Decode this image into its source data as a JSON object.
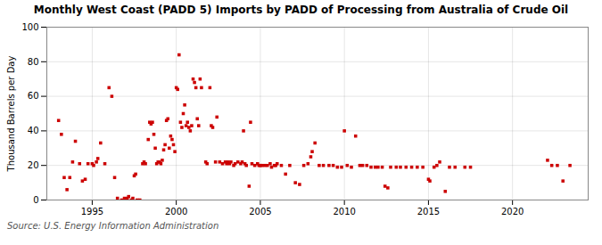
{
  "chart_data": {
    "type": "scatter",
    "title": "Monthly West Coast (PADD 5) Imports by PADD of Processing from Australia of Crude Oil",
    "ylabel": "Thousand Barrels per Day",
    "source": "Source: U.S. Energy Information Administration",
    "color": "#cc0000",
    "marker": "square",
    "grid": true,
    "xlim": [
      1992.3,
      2024.5
    ],
    "ylim": [
      0,
      100
    ],
    "xticks": [
      1995,
      2000,
      2005,
      2010,
      2015,
      2020
    ],
    "yticks": [
      0,
      20,
      40,
      60,
      80,
      100
    ],
    "x": [
      1993,
      1993.1666666667,
      1993.3333333333,
      1993.5,
      1993.6666666667,
      1993.8333333333,
      1994,
      1994.25,
      1994.4166666667,
      1994.5833333333,
      1994.75,
      1995,
      1995.0833333333,
      1995.25,
      1995.3333333333,
      1995.5,
      1995.75,
      1996,
      1996.1666666667,
      1996.3333333333,
      1996.5,
      1996.75,
      1996.9166666667,
      1997,
      1997.0833333333,
      1997.1666666667,
      1997.3333333333,
      1997.4166666667,
      1997.5,
      1997.5833333333,
      1997.6666666667,
      1997.8333333333,
      1998,
      1998.0833333333,
      1998.1666666667,
      1998.3333333333,
      1998.4166666667,
      1998.5,
      1998.5833333333,
      1998.6666666667,
      1998.75,
      1998.8333333333,
      1998.9166666667,
      1999,
      1999.0833333333,
      1999.1666666667,
      1999.25,
      1999.3333333333,
      1999.4166666667,
      1999.5,
      1999.5833333333,
      1999.6666666667,
      1999.75,
      1999.8333333333,
      1999.9166666667,
      2000,
      2000.0833333333,
      2000.1666666667,
      2000.25,
      2000.3333333333,
      2000.4166666667,
      2000.5,
      2000.5833333333,
      2000.6666666667,
      2000.75,
      2000.8333333333,
      2000.9166666667,
      2001,
      2001.0833333333,
      2001.1666666667,
      2001.25,
      2001.3333333333,
      2001.4166666667,
      2001.5,
      2001.75,
      2001.8333333333,
      2002,
      2002.0833333333,
      2002.1666666667,
      2002.3333333333,
      2002.4166666667,
      2002.5833333333,
      2002.75,
      2002.9166666667,
      2003,
      2003.0833333333,
      2003.1666666667,
      2003.25,
      2003.4166666667,
      2003.5,
      2003.6666666667,
      2003.8333333333,
      2003.9166666667,
      2004,
      2004.0833333333,
      2004.1666666667,
      2004.3333333333,
      2004.4166666667,
      2004.5,
      2004.6666666667,
      2004.8333333333,
      2004.9166666667,
      2005,
      2005.0833333333,
      2005.25,
      2005.4166666667,
      2005.5833333333,
      2005.6666666667,
      2005.8333333333,
      2005.9166666667,
      2006,
      2006.25,
      2006.5,
      2006.75,
      2007.0833333333,
      2007.3333333333,
      2007.5833333333,
      2007.8333333333,
      2008,
      2008.0833333333,
      2008.25,
      2008.5,
      2008.75,
      2009.0833333333,
      2009.3333333333,
      2009.5833333333,
      2009.8333333333,
      2010,
      2010.1666666667,
      2010.4166666667,
      2010.6666666667,
      2010.9166666667,
      2011.0833333333,
      2011.3333333333,
      2011.5833333333,
      2011.8333333333,
      2012,
      2012.25,
      2012.4166666667,
      2012.5833333333,
      2012.75,
      2013.0833333333,
      2013.3333333333,
      2013.6666666667,
      2014,
      2014.3333333333,
      2014.6666666667,
      2015,
      2015.0833333333,
      2015.3333333333,
      2015.5,
      2015.6666666667,
      2016,
      2016.25,
      2016.5833333333,
      2017.1666666667,
      2017.5,
      2022.0833333333,
      2022.3333333333,
      2022.6666666667,
      2023,
      2023.4166666667
    ],
    "values": [
      46,
      38,
      13,
      6,
      13,
      22,
      34,
      21,
      11,
      12,
      21,
      21,
      20,
      22,
      24,
      33,
      21,
      65,
      60,
      13,
      1,
      0,
      1,
      0,
      1,
      2,
      0,
      1,
      14,
      15,
      0,
      0,
      21,
      22,
      21,
      35,
      45,
      44,
      45,
      38,
      30,
      21,
      22,
      22,
      21,
      23,
      29,
      32,
      46,
      47,
      30,
      37,
      35,
      32,
      28,
      65,
      64,
      84,
      45,
      42,
      50,
      55,
      43,
      45,
      42,
      40,
      43,
      70,
      68,
      65,
      47,
      43,
      70,
      65,
      22,
      21,
      65,
      43,
      42,
      22,
      48,
      22,
      21,
      22,
      21,
      22,
      21,
      22,
      20,
      21,
      22,
      21,
      22,
      40,
      21,
      20,
      8,
      45,
      21,
      20,
      21,
      20,
      20,
      20,
      20,
      20,
      21,
      19,
      20,
      20,
      21,
      20,
      15,
      20,
      10,
      9,
      20,
      21,
      25,
      28,
      33,
      20,
      20,
      20,
      20,
      19,
      19,
      40,
      20,
      19,
      37,
      20,
      20,
      20,
      19,
      19,
      19,
      19,
      8,
      7,
      19,
      19,
      19,
      19,
      19,
      19,
      19,
      12,
      11,
      19,
      20,
      22,
      5,
      19,
      19,
      19,
      19,
      23,
      20,
      20,
      11,
      20
    ]
  }
}
